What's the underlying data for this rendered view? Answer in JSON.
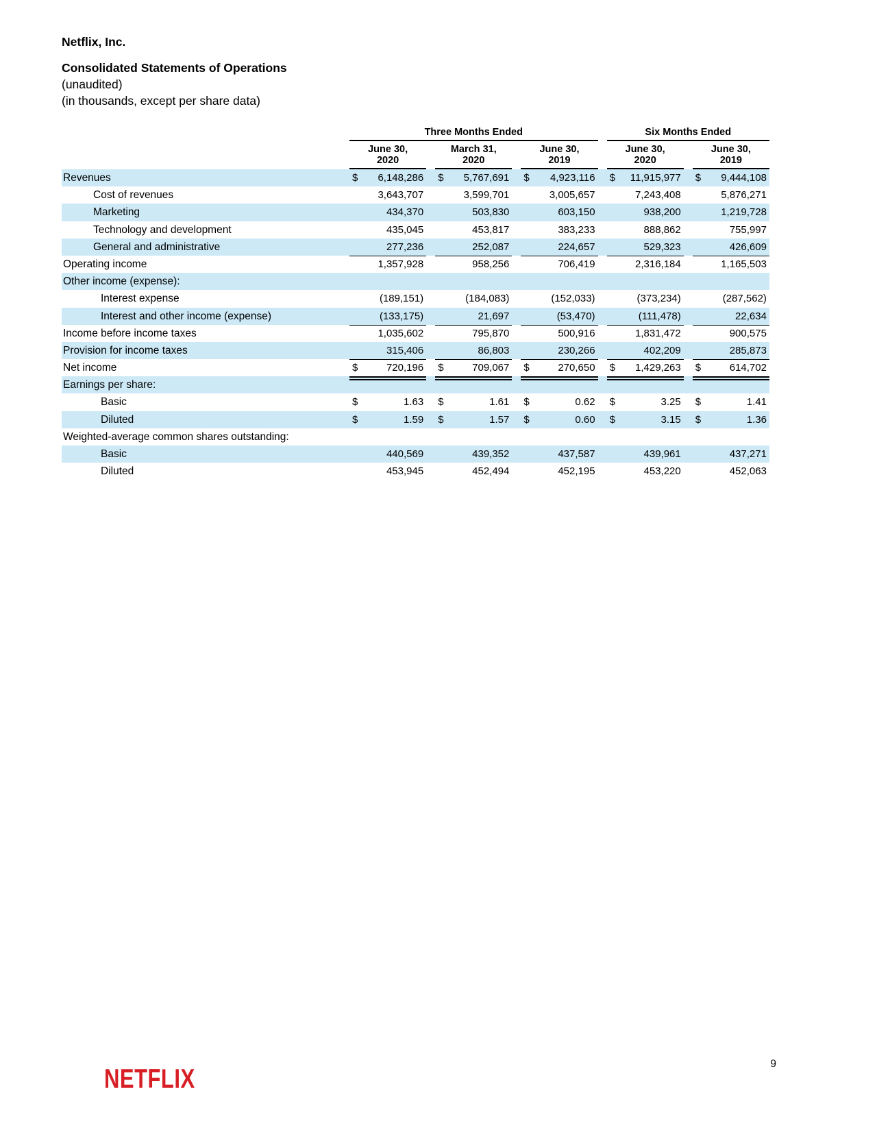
{
  "header": {
    "company": "Netflix, Inc.",
    "title": "Consolidated Statements of Operations",
    "subtitle1": "(unaudited)",
    "subtitle2": "(in thousands, except per share data)"
  },
  "table": {
    "group_headers": [
      {
        "label": "Three Months Ended",
        "span": 3
      },
      {
        "label": "Six Months Ended",
        "span": 2
      }
    ],
    "column_headers": [
      {
        "line1": "June 30,",
        "line2": "2020"
      },
      {
        "line1": "March 31,",
        "line2": "2020"
      },
      {
        "line1": "June 30,",
        "line2": "2019"
      },
      {
        "line1": "June 30,",
        "line2": "2020"
      },
      {
        "line1": "June 30,",
        "line2": "2019"
      }
    ],
    "rows": [
      {
        "label": "Revenues",
        "indent": 0,
        "shaded": true,
        "dollar": true,
        "underline": "none",
        "values": [
          "6,148,286",
          "5,767,691",
          "4,923,116",
          "11,915,977",
          "9,444,108"
        ]
      },
      {
        "label": "Cost of revenues",
        "indent": 1,
        "shaded": false,
        "dollar": false,
        "underline": "none",
        "values": [
          "3,643,707",
          "3,599,701",
          "3,005,657",
          "7,243,408",
          "5,876,271"
        ]
      },
      {
        "label": "Marketing",
        "indent": 1,
        "shaded": true,
        "dollar": false,
        "underline": "none",
        "values": [
          "434,370",
          "503,830",
          "603,150",
          "938,200",
          "1,219,728"
        ]
      },
      {
        "label": "Technology and development",
        "indent": 1,
        "shaded": false,
        "dollar": false,
        "underline": "none",
        "values": [
          "435,045",
          "453,817",
          "383,233",
          "888,862",
          "755,997"
        ]
      },
      {
        "label": "General and administrative",
        "indent": 1,
        "shaded": true,
        "dollar": false,
        "underline": "single",
        "values": [
          "277,236",
          "252,087",
          "224,657",
          "529,323",
          "426,609"
        ]
      },
      {
        "label": "Operating income",
        "indent": 0,
        "shaded": false,
        "dollar": false,
        "underline": "none",
        "values": [
          "1,357,928",
          "958,256",
          "706,419",
          "2,316,184",
          "1,165,503"
        ]
      },
      {
        "label": "Other income (expense):",
        "indent": 0,
        "shaded": true,
        "dollar": false,
        "underline": "none",
        "values": [
          "",
          "",
          "",
          "",
          ""
        ]
      },
      {
        "label": "Interest expense",
        "indent": 2,
        "shaded": false,
        "dollar": false,
        "underline": "none",
        "values": [
          "(189,151)",
          "(184,083)",
          "(152,033)",
          "(373,234)",
          "(287,562)"
        ]
      },
      {
        "label": "Interest and other income (expense)",
        "indent": 2,
        "shaded": true,
        "dollar": false,
        "underline": "single",
        "values": [
          "(133,175)",
          "21,697",
          "(53,470)",
          "(111,478)",
          "22,634"
        ]
      },
      {
        "label": "Income before income taxes",
        "indent": 0,
        "shaded": false,
        "dollar": false,
        "underline": "none",
        "values": [
          "1,035,602",
          "795,870",
          "500,916",
          "1,831,472",
          "900,575"
        ]
      },
      {
        "label": "Provision for income taxes",
        "indent": 0,
        "shaded": true,
        "dollar": false,
        "underline": "single",
        "values": [
          "315,406",
          "86,803",
          "230,266",
          "402,209",
          "285,873"
        ]
      },
      {
        "label": "Net income",
        "indent": 0,
        "shaded": false,
        "dollar": true,
        "underline": "double",
        "values": [
          "720,196",
          "709,067",
          "270,650",
          "1,429,263",
          "614,702"
        ]
      },
      {
        "label": "Earnings per share:",
        "indent": 0,
        "shaded": true,
        "dollar": false,
        "underline": "none",
        "values": [
          "",
          "",
          "",
          "",
          ""
        ]
      },
      {
        "label": "Basic",
        "indent": 2,
        "shaded": false,
        "dollar": true,
        "underline": "none",
        "values": [
          "1.63",
          "1.61",
          "0.62",
          "3.25",
          "1.41"
        ]
      },
      {
        "label": "Diluted",
        "indent": 2,
        "shaded": true,
        "dollar": true,
        "underline": "none",
        "values": [
          "1.59",
          "1.57",
          "0.60",
          "3.15",
          "1.36"
        ]
      },
      {
        "label": "Weighted-average common shares outstanding:",
        "indent": 0,
        "shaded": false,
        "dollar": false,
        "underline": "none",
        "values": [
          "",
          "",
          "",
          "",
          ""
        ]
      },
      {
        "label": "Basic",
        "indent": 2,
        "shaded": true,
        "dollar": false,
        "underline": "none",
        "values": [
          "440,569",
          "439,352",
          "437,587",
          "439,961",
          "437,271"
        ]
      },
      {
        "label": "Diluted",
        "indent": 2,
        "shaded": false,
        "dollar": false,
        "underline": "none",
        "values": [
          "453,945",
          "452,494",
          "452,195",
          "453,220",
          "452,063"
        ]
      }
    ]
  },
  "footer": {
    "logo": "NETFLIX",
    "page_number": "9"
  },
  "colors": {
    "row_highlight": "#cde9f6",
    "logo_red": "#d81f26"
  }
}
